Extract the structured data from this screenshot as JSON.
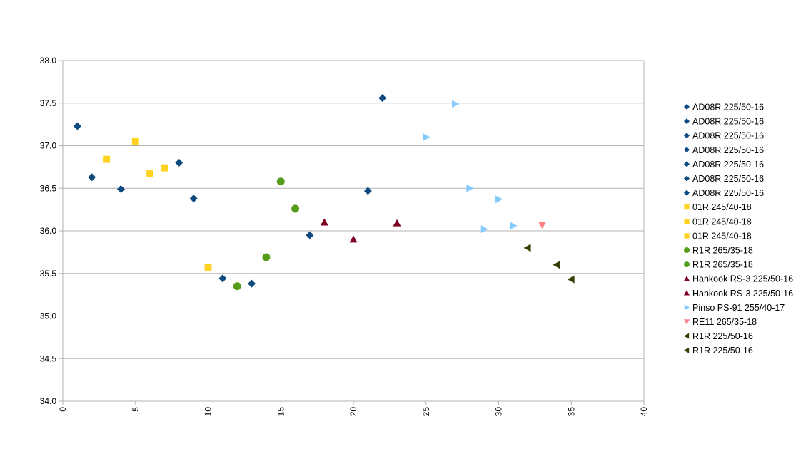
{
  "chart_data": {
    "type": "scatter",
    "title": "",
    "xlabel": "",
    "ylabel": "",
    "xlim": [
      0,
      40
    ],
    "ylim": [
      34.0,
      38.0
    ],
    "x_ticks": [
      "0",
      "5",
      "10",
      "15",
      "20",
      "25",
      "30",
      "35",
      "40"
    ],
    "y_ticks": [
      "34.0",
      "34.5",
      "35.0",
      "35.5",
      "36.0",
      "36.5",
      "37.0",
      "37.5",
      "38.0"
    ],
    "grid": "horizontal",
    "legend_position": "right",
    "series": [
      {
        "name": "AD08R 225/50-16",
        "marker": "diamond",
        "color": "#0c4a80",
        "points": [
          [
            1,
            37.23
          ]
        ]
      },
      {
        "name": "AD08R 225/50-16",
        "marker": "diamond",
        "color": "#0c4a80",
        "points": [
          [
            2,
            36.63
          ]
        ]
      },
      {
        "name": "AD08R 225/50-16",
        "marker": "diamond",
        "color": "#0c4a80",
        "points": [
          [
            4,
            36.49
          ]
        ]
      },
      {
        "name": "AD08R 225/50-16",
        "marker": "diamond",
        "color": "#0c4a80",
        "points": [
          [
            8,
            36.8
          ],
          [
            9,
            36.38
          ]
        ]
      },
      {
        "name": "AD08R 225/50-16",
        "marker": "diamond",
        "color": "#0c4a80",
        "points": [
          [
            11,
            35.44
          ],
          [
            13,
            35.38
          ]
        ]
      },
      {
        "name": "AD08R 225/50-16",
        "marker": "diamond",
        "color": "#0c4a80",
        "points": [
          [
            17,
            35.95
          ]
        ]
      },
      {
        "name": "AD08R 225/50-16",
        "marker": "diamond",
        "color": "#0c4a80",
        "points": [
          [
            21,
            36.47
          ],
          [
            22,
            37.56
          ]
        ]
      },
      {
        "name": "01R 245/40-18",
        "marker": "square",
        "color": "#ffd320",
        "points": [
          [
            3,
            36.84
          ]
        ]
      },
      {
        "name": "01R 245/40-18",
        "marker": "square",
        "color": "#ffd320",
        "points": [
          [
            5,
            37.05
          ],
          [
            6,
            36.67
          ],
          [
            7,
            36.74
          ]
        ]
      },
      {
        "name": "01R 245/40-18",
        "marker": "square",
        "color": "#ffd320",
        "points": [
          [
            10,
            35.57
          ]
        ]
      },
      {
        "name": "R1R 265/35-18",
        "marker": "circle",
        "color": "#579d1c",
        "points": [
          [
            12,
            35.35
          ],
          [
            14,
            35.69
          ]
        ]
      },
      {
        "name": "R1R 265/35-18",
        "marker": "circle",
        "color": "#579d1c",
        "points": [
          [
            15,
            36.58
          ],
          [
            16,
            36.26
          ]
        ]
      },
      {
        "name": "Hankook RS-3 225/50-16",
        "marker": "triangle-up",
        "color": "#7e0021",
        "points": [
          [
            18,
            36.1
          ],
          [
            20,
            35.9
          ]
        ]
      },
      {
        "name": "Hankook RS-3 225/50-16",
        "marker": "triangle-up",
        "color": "#7e0021",
        "points": [
          [
            23,
            36.09
          ]
        ]
      },
      {
        "name": "Pinso PS-91 255/40-17",
        "marker": "triangle-right",
        "color": "#83caff",
        "points": [
          [
            25,
            37.1
          ],
          [
            27,
            37.49
          ],
          [
            28,
            36.5
          ],
          [
            29,
            36.02
          ],
          [
            30,
            36.37
          ],
          [
            31,
            36.06
          ]
        ]
      },
      {
        "name": "RE11 265/35-18",
        "marker": "triangle-down",
        "color": "#ff8080",
        "points": [
          [
            33,
            36.07
          ]
        ]
      },
      {
        "name": "R1R 225/50-16",
        "marker": "triangle-left",
        "color": "#314004",
        "points": [
          [
            32,
            35.8
          ]
        ]
      },
      {
        "name": "R1R 225/50-16",
        "marker": "triangle-left",
        "color": "#314004",
        "points": [
          [
            34,
            35.6
          ],
          [
            35,
            35.43
          ]
        ]
      }
    ]
  }
}
